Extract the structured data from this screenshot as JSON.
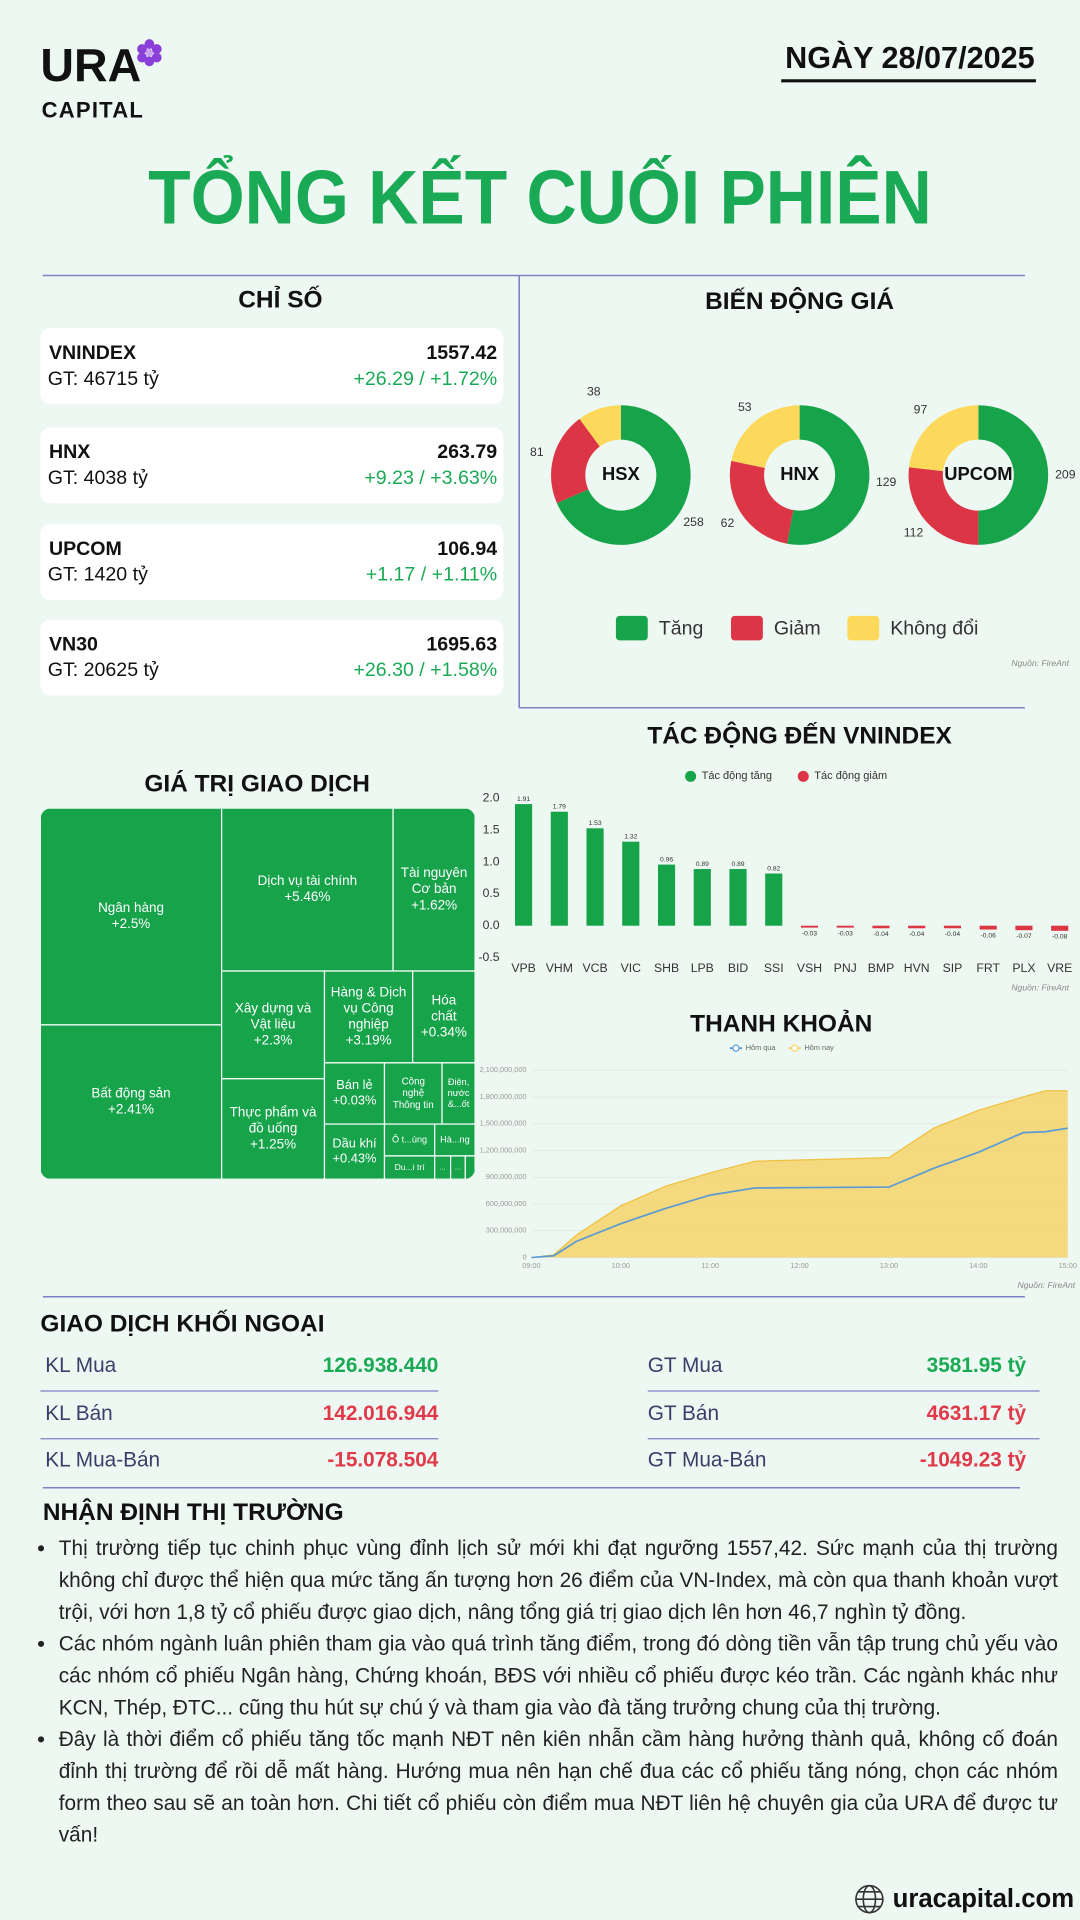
{
  "header": {
    "logo": "URA",
    "logo_sub": "CAPITAL",
    "date": "NGÀY 28/07/2025",
    "title": "TỔNG KẾT CUỐI PHIÊN"
  },
  "indices": {
    "title": "CHỈ SỐ",
    "rows": [
      {
        "name": "VNINDEX",
        "value": 1557.42,
        "turnover": "GT: 46715 tỷ",
        "change": "+26.29 / +1.72%"
      },
      {
        "name": "HNX",
        "value": 263.79,
        "turnover": "GT: 4038 tỷ",
        "change": "+9.23 / +3.63%"
      },
      {
        "name": "UPCOM",
        "value": 106.94,
        "turnover": "GT: 1420 tỷ",
        "change": "+1.17 / +1.11%"
      },
      {
        "name": "VN30",
        "value": 1695.63,
        "turnover": "GT: 20625 tỷ",
        "change": "+26.30 / +1.58%"
      }
    ]
  },
  "breadth_chart": {
    "type": "pie",
    "title": "BIẾN ĐỘNG GIÁ",
    "categories": [
      "Tăng",
      "Giảm",
      "Không đổi"
    ],
    "colors": [
      "#16a34a",
      "#dc3545",
      "#fcd95b"
    ],
    "series": [
      {
        "name": "HSX",
        "values": [
          258,
          81,
          38
        ]
      },
      {
        "name": "HNX",
        "values": [
          129,
          62,
          53
        ]
      },
      {
        "name": "UPCOM",
        "values": [
          209,
          112,
          97
        ]
      }
    ],
    "source": "Nguồn: FireAnt"
  },
  "impact_chart": {
    "type": "bar",
    "title": "TÁC ĐỘNG ĐẾN VNINDEX",
    "categories": [
      "VPB",
      "VHM",
      "VCB",
      "VIC",
      "SHB",
      "LPB",
      "BID",
      "SSI",
      "VSH",
      "PNJ",
      "BMP",
      "HVN",
      "SIP",
      "FRT",
      "PLX",
      "VRE"
    ],
    "series": [
      {
        "name": "Tác động tăng",
        "color": "#16a34a",
        "values": [
          1.91,
          1.79,
          1.53,
          1.32,
          0.96,
          0.89,
          0.89,
          0.82,
          null,
          null,
          null,
          null,
          null,
          null,
          null,
          null
        ]
      },
      {
        "name": "Tác động giảm",
        "color": "#dc3545",
        "values": [
          null,
          null,
          null,
          null,
          null,
          null,
          null,
          null,
          -0.03,
          -0.03,
          -0.04,
          -0.04,
          -0.04,
          -0.06,
          -0.07,
          -0.08
        ]
      }
    ],
    "ylim": [
      -0.5,
      2
    ],
    "yticks": [
      {
        "value": 2,
        "label": "2.0"
      },
      1.5,
      {
        "value": 1,
        "label": "1.0"
      },
      0.5,
      {
        "value": 0,
        "label": "0.0"
      },
      -0.5
    ],
    "source": "Nguồn: FireAnt"
  },
  "treemap": {
    "title": "GIÁ TRỊ GIAO DỊCH",
    "cells": [
      {
        "label": [
          "Ngân hàng"
        ],
        "change": "+2.5%"
      },
      {
        "label": [
          "Bất động sản"
        ],
        "change": "+2.41%"
      },
      {
        "label": [
          "Dịch vụ tài chính"
        ],
        "change": "+5.46%"
      },
      {
        "label": [
          "Tài nguyên",
          "Cơ bản"
        ],
        "change": "+1.62%"
      },
      {
        "label": [
          "Xây dựng và",
          "Vật liệu"
        ],
        "change": "+2.3%"
      },
      {
        "label": [
          "Hàng & Dịch",
          "vụ Công",
          "nghiệp"
        ],
        "change": "+3.19%"
      },
      {
        "label": [
          "Hóa",
          "chất"
        ],
        "change": "+0.34%"
      },
      {
        "label": [
          "Thực phẩm và",
          "đồ uống"
        ],
        "change": "+1.25%"
      },
      {
        "label": [
          "Bán lẻ"
        ],
        "change": "+0.03%"
      },
      {
        "label": [
          "Dầu khí"
        ],
        "change": "+0.43%"
      },
      {
        "label": [
          "Công",
          "nghệ",
          "Thông tin"
        ]
      },
      {
        "label": [
          "Điện,",
          "nước",
          "&...ốt"
        ]
      },
      {
        "label": [
          "Ô t...ùng"
        ]
      },
      {
        "label": [
          "Hà...ng"
        ]
      },
      {
        "label": [
          "Du...i trí"
        ]
      },
      {
        "label": [
          "..."
        ]
      },
      {
        "label": [
          "..."
        ]
      }
    ]
  },
  "liquidity_chart": {
    "type": "line",
    "title": "THANH KHOẢN",
    "x": [
      "09:00",
      "09:15",
      "09:30",
      "10:00",
      "10:30",
      "11:00",
      "11:30",
      "13:00",
      "13:30",
      "14:00",
      "14:30",
      "14:45",
      "15:00"
    ],
    "series": [
      {
        "name": "Hôm qua",
        "color": "#5b9bd5",
        "values": [
          0,
          20000000,
          180000000,
          380000000,
          550000000,
          700000000,
          780000000,
          790000000,
          1000000000,
          1180000000,
          1400000000,
          1410000000,
          1450000000
        ]
      },
      {
        "name": "Hôm nay",
        "color": "#f5d36a",
        "area": true,
        "values": [
          0,
          30000000,
          250000000,
          580000000,
          800000000,
          950000000,
          1080000000,
          1120000000,
          1450000000,
          1650000000,
          1800000000,
          1870000000,
          1870000000
        ]
      }
    ],
    "xlim": [
      "09:00",
      "15:00"
    ],
    "xticks": [
      "09:00",
      "10:00",
      "11:00",
      "12:00",
      "13:00",
      "14:00",
      "15:00"
    ],
    "ylim": [
      0,
      2100000000
    ],
    "yticks": [
      0,
      {
        "value": 300000000,
        "label": "300,000,000"
      },
      {
        "value": 600000000,
        "label": "600,000,000"
      },
      {
        "value": 900000000,
        "label": "900,000,000"
      },
      {
        "value": 1200000000,
        "label": "1,200,000,000"
      },
      {
        "value": 1500000000,
        "label": "1,500,000,000"
      },
      {
        "value": 1800000000,
        "label": "1,800,000,000"
      },
      {
        "value": 2100000000,
        "label": "2,100,000,000"
      }
    ],
    "grid": true,
    "source": "Nguồn: FireAnt"
  },
  "foreign": {
    "title": "GIAO DỊCH KHỐI NGOẠI",
    "rows": [
      [
        {
          "label": "KL Mua",
          "value": "126.938.440"
        },
        {
          "label": "GT Mua",
          "value": "3581.95 tỷ"
        }
      ],
      [
        {
          "label": "KL Bán",
          "value": "142.016.944"
        },
        {
          "label": "GT Bán",
          "value": "4631.17 tỷ"
        }
      ],
      [
        {
          "label": "KL Mua-Bán",
          "value": "-15.078.504"
        },
        {
          "label": "GT Mua-Bán",
          "value": "-1049.23 tỷ"
        }
      ]
    ]
  },
  "commentary": {
    "title": "NHẬN ĐỊNH THỊ TRƯỜNG",
    "bullets": [
      "Thị trường tiếp tục chinh phục vùng đỉnh lịch sử mới khi đạt ngưỡng 1557,42. Sức mạnh của thị trường không chỉ được thể hiện qua mức tăng ấn tượng hơn 26 điểm của VN-Index, mà còn qua thanh khoản vượt trội, với hơn 1,8 tỷ cổ phiếu được giao dịch, nâng tổng giá trị giao dịch lên hơn 46,7 nghìn tỷ đồng.",
      "Các nhóm ngành luân phiên tham gia vào quá trình tăng điểm, trong đó dòng tiền vẫn tập trung chủ yếu vào các nhóm cổ phiếu Ngân hàng, Chứng khoán, BĐS với nhiều cổ phiếu được kéo trần. Các ngành khác như KCN, Thép, ĐTC... cũng thu hút sự chú ý và tham gia vào đà tăng trưởng chung của thị trường.",
      "Đây là thời điểm cổ phiếu tăng tốc mạnh NĐT nên kiên nhẫn cầm hàng hưởng thành quả, không cố đoán đỉnh thị trường để rồi dễ mất hàng. Hướng mua nên hạn chế đua các cổ phiếu tăng nóng, chọn các nhóm form theo sau sẽ an toàn hơn. Chi tiết cổ phiếu còn điểm mua NĐT liên hệ chuyên gia của URA để được tư vấn!"
    ]
  },
  "footer": {
    "website": "uracapital.com"
  }
}
